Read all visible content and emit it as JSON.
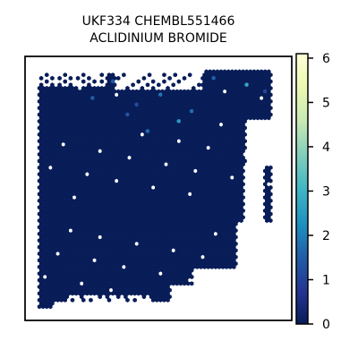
{
  "chart_data": {
    "type": "heatmap",
    "subtype": "hexbin",
    "title_lines": [
      "UKF334 CHEMBL551466",
      "ACLIDINIUM BROMIDE"
    ],
    "xlabel": "",
    "ylabel": "",
    "colorbar": {
      "cmap": "YlGnBu_r",
      "range": [
        0,
        6.1
      ],
      "ticks": [
        0,
        1,
        2,
        3,
        4,
        5,
        6
      ],
      "tick_labels": [
        "0",
        "1",
        "2",
        "3",
        "4",
        "5",
        "6"
      ]
    },
    "grid": false,
    "background_value": 0,
    "highlight_cells": [
      {
        "col": 12,
        "row": 4,
        "value": 2.2
      },
      {
        "col": 20,
        "row": 3,
        "value": 1.4
      },
      {
        "col": 33,
        "row": 7,
        "value": 1.9
      },
      {
        "col": 48,
        "row": 2,
        "value": 1.6
      },
      {
        "col": 57,
        "row": 4,
        "value": 2.8
      },
      {
        "col": 27,
        "row": 10,
        "value": 1.2
      },
      {
        "col": 42,
        "row": 12,
        "value": 1.8
      },
      {
        "col": 24,
        "row": 13,
        "value": 1.3
      },
      {
        "col": 38,
        "row": 15,
        "value": 2.5
      },
      {
        "col": 30,
        "row": 18,
        "value": 1.7
      },
      {
        "col": 15,
        "row": 8,
        "value": 1.5
      },
      {
        "col": 62,
        "row": 6,
        "value": 1.1
      }
    ]
  }
}
